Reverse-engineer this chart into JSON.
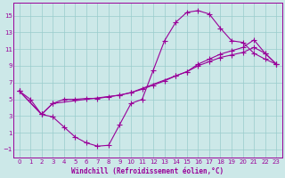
{
  "xlabel": "Windchill (Refroidissement éolien,°C)",
  "xlim": [
    -0.5,
    23.5
  ],
  "ylim": [
    -2.0,
    16.5
  ],
  "xticks": [
    0,
    1,
    2,
    3,
    4,
    5,
    6,
    7,
    8,
    9,
    10,
    11,
    12,
    13,
    14,
    15,
    16,
    17,
    18,
    19,
    20,
    21,
    22,
    23
  ],
  "yticks": [
    -1,
    1,
    3,
    5,
    7,
    9,
    11,
    13,
    15
  ],
  "line1_x": [
    0,
    1,
    2,
    3,
    4,
    5,
    6,
    7,
    8,
    9,
    10,
    11,
    12,
    13,
    14,
    15,
    16,
    17,
    18,
    19,
    20,
    21,
    22,
    23
  ],
  "line1_y": [
    6.0,
    5.0,
    3.2,
    2.9,
    1.7,
    0.5,
    -0.2,
    -0.6,
    -0.5,
    2.0,
    4.5,
    5.0,
    8.5,
    12.0,
    14.2,
    15.4,
    15.6,
    15.2,
    13.5,
    12.0,
    11.8,
    10.5,
    9.8,
    9.2
  ],
  "line2_x": [
    0,
    2,
    3,
    4,
    5,
    6,
    7,
    8,
    9,
    10,
    11,
    12,
    13,
    14,
    15,
    16,
    17,
    18,
    19,
    20,
    21,
    22,
    23
  ],
  "line2_y": [
    6.0,
    3.2,
    4.5,
    5.0,
    5.0,
    5.1,
    5.1,
    5.3,
    5.5,
    5.8,
    6.2,
    6.7,
    7.2,
    7.8,
    8.3,
    9.0,
    9.5,
    10.0,
    10.3,
    10.6,
    11.2,
    10.5,
    9.2
  ],
  "line3_x": [
    0,
    2,
    3,
    9,
    10,
    14,
    15,
    16,
    17,
    18,
    19,
    20,
    21,
    22,
    23
  ],
  "line3_y": [
    6.0,
    3.2,
    4.5,
    5.5,
    5.8,
    7.8,
    8.3,
    9.2,
    9.8,
    10.4,
    10.8,
    11.2,
    12.1,
    10.5,
    9.2
  ],
  "color": "#990099",
  "bg_color": "#cce8e8",
  "grid_color": "#99cccc",
  "markersize": 2.0,
  "linewidth": 0.8,
  "tick_fontsize": 5.0,
  "label_fontsize": 5.5
}
